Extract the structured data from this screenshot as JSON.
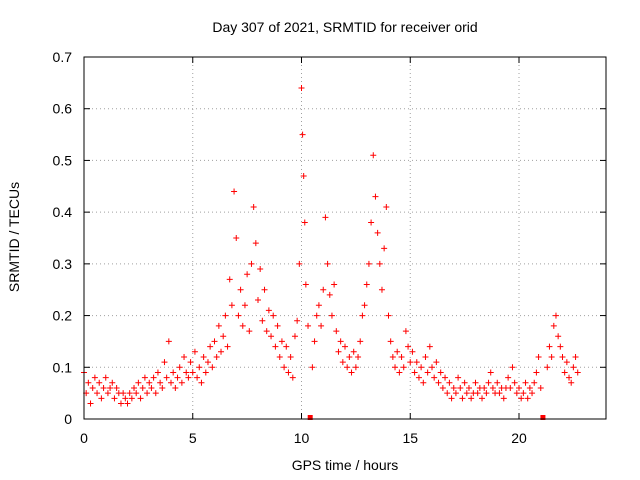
{
  "chart_data": {
    "type": "scatter",
    "title": "Day 307 of 2021, SRMTID for receiver orid",
    "xlabel": "GPS time / hours",
    "ylabel": "SRMTID / TECUs",
    "xlim": [
      0,
      24
    ],
    "ylim": [
      0,
      0.7
    ],
    "x_ticks": [
      0,
      5,
      10,
      15,
      20
    ],
    "y_ticks": [
      0,
      0.1,
      0.2,
      0.3,
      0.4,
      0.5,
      0.6,
      0.7
    ],
    "x_tick_labels": [
      "0",
      "5",
      "10",
      "15",
      "20"
    ],
    "y_tick_labels": [
      "0",
      "0.1",
      "0.2",
      "0.3",
      "0.4",
      "0.5",
      "0.6",
      "0.7"
    ],
    "grid": true,
    "marker": "+",
    "color": "#ff0000",
    "data_gaps_x": [
      10.4,
      21.1
    ],
    "series": [
      {
        "name": "SRMTID",
        "points": [
          [
            0.0,
            0.09
          ],
          [
            0.1,
            0.05
          ],
          [
            0.2,
            0.07
          ],
          [
            0.3,
            0.03
          ],
          [
            0.4,
            0.06
          ],
          [
            0.5,
            0.08
          ],
          [
            0.6,
            0.05
          ],
          [
            0.7,
            0.07
          ],
          [
            0.8,
            0.04
          ],
          [
            0.9,
            0.06
          ],
          [
            1.0,
            0.08
          ],
          [
            1.1,
            0.05
          ],
          [
            1.2,
            0.06
          ],
          [
            1.3,
            0.07
          ],
          [
            1.4,
            0.04
          ],
          [
            1.5,
            0.06
          ],
          [
            1.6,
            0.05
          ],
          [
            1.7,
            0.03
          ],
          [
            1.8,
            0.05
          ],
          [
            1.9,
            0.04
          ],
          [
            2.0,
            0.03
          ],
          [
            2.1,
            0.05
          ],
          [
            2.2,
            0.04
          ],
          [
            2.3,
            0.06
          ],
          [
            2.4,
            0.05
          ],
          [
            2.5,
            0.07
          ],
          [
            2.6,
            0.04
          ],
          [
            2.7,
            0.06
          ],
          [
            2.8,
            0.08
          ],
          [
            2.9,
            0.05
          ],
          [
            3.0,
            0.07
          ],
          [
            3.1,
            0.06
          ],
          [
            3.2,
            0.08
          ],
          [
            3.3,
            0.05
          ],
          [
            3.4,
            0.09
          ],
          [
            3.5,
            0.07
          ],
          [
            3.6,
            0.06
          ],
          [
            3.7,
            0.11
          ],
          [
            3.8,
            0.08
          ],
          [
            3.9,
            0.15
          ],
          [
            4.0,
            0.07
          ],
          [
            4.1,
            0.09
          ],
          [
            4.2,
            0.06
          ],
          [
            4.3,
            0.08
          ],
          [
            4.4,
            0.1
          ],
          [
            4.5,
            0.07
          ],
          [
            4.6,
            0.12
          ],
          [
            4.7,
            0.09
          ],
          [
            4.8,
            0.08
          ],
          [
            4.9,
            0.11
          ],
          [
            5.0,
            0.09
          ],
          [
            5.1,
            0.13
          ],
          [
            5.2,
            0.08
          ],
          [
            5.3,
            0.1
          ],
          [
            5.4,
            0.07
          ],
          [
            5.5,
            0.12
          ],
          [
            5.6,
            0.09
          ],
          [
            5.7,
            0.11
          ],
          [
            5.8,
            0.14
          ],
          [
            5.9,
            0.1
          ],
          [
            6.0,
            0.15
          ],
          [
            6.1,
            0.12
          ],
          [
            6.2,
            0.18
          ],
          [
            6.3,
            0.13
          ],
          [
            6.4,
            0.16
          ],
          [
            6.5,
            0.2
          ],
          [
            6.6,
            0.14
          ],
          [
            6.7,
            0.27
          ],
          [
            6.8,
            0.22
          ],
          [
            6.9,
            0.44
          ],
          [
            7.0,
            0.35
          ],
          [
            7.1,
            0.2
          ],
          [
            7.2,
            0.25
          ],
          [
            7.3,
            0.18
          ],
          [
            7.4,
            0.22
          ],
          [
            7.5,
            0.28
          ],
          [
            7.6,
            0.17
          ],
          [
            7.7,
            0.3
          ],
          [
            7.8,
            0.41
          ],
          [
            7.9,
            0.34
          ],
          [
            8.0,
            0.23
          ],
          [
            8.1,
            0.29
          ],
          [
            8.2,
            0.19
          ],
          [
            8.3,
            0.25
          ],
          [
            8.4,
            0.17
          ],
          [
            8.5,
            0.21
          ],
          [
            8.6,
            0.16
          ],
          [
            8.7,
            0.2
          ],
          [
            8.8,
            0.14
          ],
          [
            8.9,
            0.18
          ],
          [
            9.0,
            0.12
          ],
          [
            9.1,
            0.15
          ],
          [
            9.2,
            0.1
          ],
          [
            9.3,
            0.14
          ],
          [
            9.4,
            0.09
          ],
          [
            9.5,
            0.12
          ],
          [
            9.6,
            0.08
          ],
          [
            9.7,
            0.16
          ],
          [
            9.8,
            0.19
          ],
          [
            9.9,
            0.3
          ],
          [
            10.0,
            0.64
          ],
          [
            10.05,
            0.55
          ],
          [
            10.1,
            0.47
          ],
          [
            10.15,
            0.38
          ],
          [
            10.2,
            0.26
          ],
          [
            10.3,
            0.18
          ],
          [
            10.5,
            0.1
          ],
          [
            10.6,
            0.15
          ],
          [
            10.7,
            0.2
          ],
          [
            10.8,
            0.22
          ],
          [
            10.9,
            0.18
          ],
          [
            11.0,
            0.25
          ],
          [
            11.1,
            0.39
          ],
          [
            11.2,
            0.3
          ],
          [
            11.3,
            0.24
          ],
          [
            11.4,
            0.2
          ],
          [
            11.5,
            0.26
          ],
          [
            11.6,
            0.17
          ],
          [
            11.7,
            0.13
          ],
          [
            11.8,
            0.15
          ],
          [
            11.9,
            0.11
          ],
          [
            12.0,
            0.14
          ],
          [
            12.1,
            0.1
          ],
          [
            12.2,
            0.12
          ],
          [
            12.3,
            0.09
          ],
          [
            12.4,
            0.13
          ],
          [
            12.5,
            0.1
          ],
          [
            12.6,
            0.12
          ],
          [
            12.7,
            0.15
          ],
          [
            12.8,
            0.2
          ],
          [
            12.9,
            0.22
          ],
          [
            13.0,
            0.26
          ],
          [
            13.1,
            0.3
          ],
          [
            13.2,
            0.38
          ],
          [
            13.3,
            0.51
          ],
          [
            13.4,
            0.43
          ],
          [
            13.5,
            0.36
          ],
          [
            13.6,
            0.3
          ],
          [
            13.7,
            0.25
          ],
          [
            13.8,
            0.33
          ],
          [
            13.9,
            0.41
          ],
          [
            14.0,
            0.2
          ],
          [
            14.1,
            0.15
          ],
          [
            14.2,
            0.12
          ],
          [
            14.3,
            0.1
          ],
          [
            14.4,
            0.13
          ],
          [
            14.5,
            0.09
          ],
          [
            14.6,
            0.12
          ],
          [
            14.7,
            0.1
          ],
          [
            14.8,
            0.17
          ],
          [
            14.9,
            0.14
          ],
          [
            15.0,
            0.11
          ],
          [
            15.1,
            0.13
          ],
          [
            15.2,
            0.09
          ],
          [
            15.3,
            0.11
          ],
          [
            15.4,
            0.08
          ],
          [
            15.5,
            0.1
          ],
          [
            15.6,
            0.07
          ],
          [
            15.7,
            0.12
          ],
          [
            15.8,
            0.09
          ],
          [
            15.9,
            0.14
          ],
          [
            16.0,
            0.1
          ],
          [
            16.1,
            0.08
          ],
          [
            16.2,
            0.11
          ],
          [
            16.3,
            0.07
          ],
          [
            16.4,
            0.09
          ],
          [
            16.5,
            0.06
          ],
          [
            16.6,
            0.08
          ],
          [
            16.7,
            0.05
          ],
          [
            16.8,
            0.07
          ],
          [
            16.9,
            0.04
          ],
          [
            17.0,
            0.06
          ],
          [
            17.1,
            0.05
          ],
          [
            17.2,
            0.08
          ],
          [
            17.3,
            0.06
          ],
          [
            17.4,
            0.04
          ],
          [
            17.5,
            0.07
          ],
          [
            17.6,
            0.05
          ],
          [
            17.7,
            0.06
          ],
          [
            17.8,
            0.04
          ],
          [
            17.9,
            0.05
          ],
          [
            18.0,
            0.07
          ],
          [
            18.1,
            0.05
          ],
          [
            18.2,
            0.06
          ],
          [
            18.3,
            0.04
          ],
          [
            18.4,
            0.06
          ],
          [
            18.5,
            0.05
          ],
          [
            18.6,
            0.07
          ],
          [
            18.7,
            0.09
          ],
          [
            18.8,
            0.06
          ],
          [
            18.9,
            0.05
          ],
          [
            19.0,
            0.07
          ],
          [
            19.1,
            0.05
          ],
          [
            19.2,
            0.06
          ],
          [
            19.3,
            0.04
          ],
          [
            19.4,
            0.06
          ],
          [
            19.5,
            0.08
          ],
          [
            19.6,
            0.06
          ],
          [
            19.7,
            0.1
          ],
          [
            19.8,
            0.07
          ],
          [
            19.9,
            0.05
          ],
          [
            20.0,
            0.06
          ],
          [
            20.1,
            0.04
          ],
          [
            20.2,
            0.05
          ],
          [
            20.3,
            0.07
          ],
          [
            20.4,
            0.04
          ],
          [
            20.5,
            0.06
          ],
          [
            20.6,
            0.05
          ],
          [
            20.7,
            0.07
          ],
          [
            20.8,
            0.09
          ],
          [
            20.9,
            0.12
          ],
          [
            21.0,
            0.06
          ],
          [
            21.3,
            0.1
          ],
          [
            21.4,
            0.14
          ],
          [
            21.5,
            0.12
          ],
          [
            21.6,
            0.18
          ],
          [
            21.7,
            0.2
          ],
          [
            21.8,
            0.16
          ],
          [
            21.9,
            0.14
          ],
          [
            22.0,
            0.12
          ],
          [
            22.1,
            0.09
          ],
          [
            22.2,
            0.11
          ],
          [
            22.3,
            0.08
          ],
          [
            22.4,
            0.07
          ],
          [
            22.5,
            0.1
          ],
          [
            22.6,
            0.12
          ],
          [
            22.7,
            0.09
          ]
        ]
      }
    ]
  }
}
